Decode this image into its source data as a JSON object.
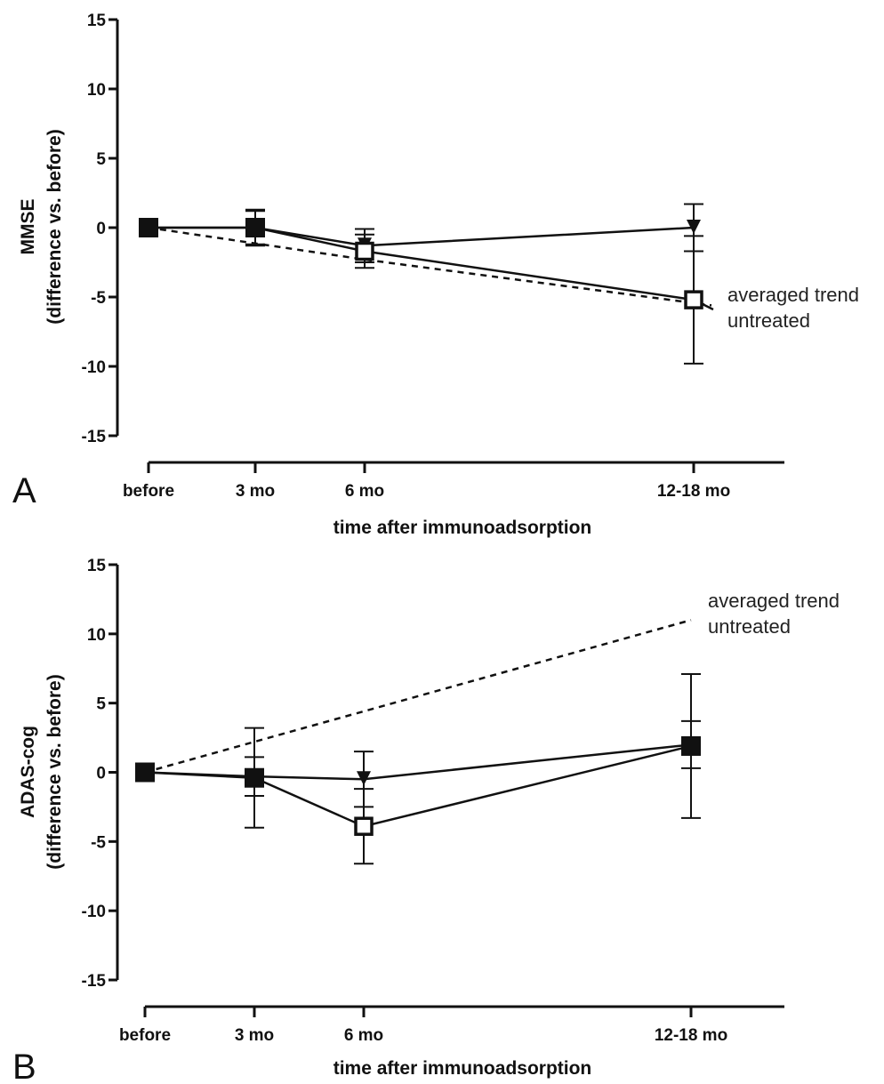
{
  "chart_data": [
    {
      "type": "line",
      "panel_label": "A",
      "categories": [
        "before",
        "3 mo",
        "6 mo",
        "12-18 mo"
      ],
      "xlabel": "time after immunoadsorption",
      "ylabel": [
        "MMSE",
        "(difference vs. before)"
      ],
      "ylim": [
        -15,
        15
      ],
      "yticks": [
        15,
        10,
        5,
        0,
        -5,
        -10,
        -15
      ],
      "series": [
        {
          "marker": "filled-triangle-down",
          "values": [
            0,
            0,
            -1.3,
            0
          ],
          "error": [
            0,
            1.2,
            1.2,
            1.7
          ]
        },
        {
          "marker": "open-square",
          "values": [
            0,
            0,
            -1.7,
            -5.2
          ],
          "error": [
            0,
            1.3,
            1.2,
            4.6
          ]
        },
        {
          "marker": "filled-square-start",
          "values": [
            0,
            0,
            null,
            null
          ],
          "error": [
            0,
            0,
            0,
            0
          ]
        }
      ],
      "trend": {
        "style": "dashed",
        "values": [
          0,
          null,
          -2.3,
          -5.6
        ],
        "annotation": [
          "averaged trend",
          "untreated"
        ]
      }
    },
    {
      "type": "line",
      "panel_label": "B",
      "categories": [
        "before",
        "3 mo",
        "6 mo",
        "12-18 mo"
      ],
      "xlabel": "time after immunoadsorption",
      "ylabel": [
        "ADAS-cog",
        "(difference vs. before)"
      ],
      "ylim": [
        -15,
        15
      ],
      "yticks": [
        15,
        10,
        5,
        0,
        -5,
        -10,
        -15
      ],
      "series": [
        {
          "marker": "filled-triangle-down",
          "values": [
            0,
            -0.3,
            -0.5,
            2.0
          ],
          "error": [
            0,
            1.4,
            2.0,
            1.7
          ]
        },
        {
          "marker": "open-square",
          "values": [
            0,
            -0.4,
            -3.9,
            1.9
          ],
          "error": [
            0,
            3.6,
            2.7,
            5.2
          ]
        },
        {
          "marker": "filled-square-start",
          "values": [
            0,
            -0.4,
            null,
            1.9
          ],
          "error": [
            0,
            0,
            0,
            0
          ]
        }
      ],
      "trend": {
        "style": "dashed",
        "values": [
          0,
          null,
          null,
          11.0
        ],
        "annotation": [
          "averaged trend",
          "untreated"
        ]
      }
    }
  ]
}
